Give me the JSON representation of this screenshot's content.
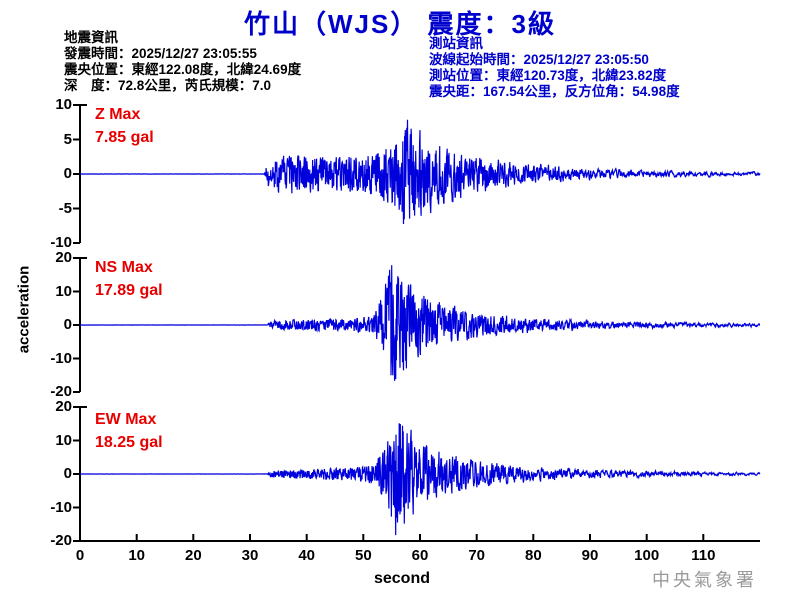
{
  "title": "竹山（WJS） 震度：3級",
  "watermark": "中央氣象署",
  "earthquake_info": {
    "heading": "地震資訊",
    "origin_time": "發震時間：2025/12/27 23:05:55",
    "epicenter": "震央位置：東經122.08度，北緯24.69度",
    "depth_magnitude": "深　度：72.8公里，芮氏規模：7.0"
  },
  "station_info": {
    "heading": "測站資訊",
    "trace_start_time": "波線起始時間：2025/12/27 23:05:50",
    "station_location": "測站位置：東經120.73度，北緯23.82度",
    "distance_azimuth": "震央距：167.54公里，反方位角：54.98度"
  },
  "colors": {
    "blue_text": "#0000cc",
    "waveform": "#0000dd",
    "red_label": "#e80000",
    "watermark_gray": "#9a9a9a",
    "black": "#000000"
  },
  "chart_data": {
    "type": "line",
    "xlabel": "second",
    "ylabel": "acceleration",
    "x_range": [
      0,
      120
    ],
    "x_ticks": [
      0,
      10,
      20,
      30,
      40,
      50,
      60,
      70,
      80,
      90,
      100,
      110
    ],
    "p_onset_second": 33.2,
    "s_onset_second": 53.5,
    "panels": [
      {
        "id": "Z",
        "label": "Z Max",
        "max_label": "7.85 gal",
        "max_gal": 7.85,
        "y_range": [
          -10,
          10
        ],
        "y_ticks": [
          10,
          5,
          0,
          -5,
          -10
        ],
        "envelope": [
          [
            0,
            0.02
          ],
          [
            32.5,
            0.02
          ],
          [
            33.2,
            1.8
          ],
          [
            36,
            2.6
          ],
          [
            44,
            2.2
          ],
          [
            50,
            2.4
          ],
          [
            53,
            3.2
          ],
          [
            55,
            4.5
          ],
          [
            56.5,
            7.0
          ],
          [
            58,
            7.85
          ],
          [
            59.5,
            6.0
          ],
          [
            62,
            5.0
          ],
          [
            65,
            3.6
          ],
          [
            70,
            2.6
          ],
          [
            76,
            1.9
          ],
          [
            84,
            1.3
          ],
          [
            92,
            0.9
          ],
          [
            100,
            0.7
          ],
          [
            110,
            0.5
          ],
          [
            120,
            0.45
          ]
        ]
      },
      {
        "id": "NS",
        "label": "NS Max",
        "max_label": "17.89 gal",
        "max_gal": 17.89,
        "y_range": [
          -20,
          20
        ],
        "y_ticks": [
          20,
          10,
          0,
          -10,
          -20
        ],
        "envelope": [
          [
            0,
            0.02
          ],
          [
            33,
            0.02
          ],
          [
            33.8,
            1.0
          ],
          [
            40,
            1.3
          ],
          [
            48,
            1.5
          ],
          [
            51.5,
            2.2
          ],
          [
            53.5,
            8
          ],
          [
            55,
            17.89
          ],
          [
            56.5,
            13
          ],
          [
            58.5,
            10
          ],
          [
            61,
            7.5
          ],
          [
            64,
            5.5
          ],
          [
            68,
            4.2
          ],
          [
            72,
            3.2
          ],
          [
            78,
            2.4
          ],
          [
            85,
            1.8
          ],
          [
            92,
            1.4
          ],
          [
            100,
            1.1
          ],
          [
            110,
            0.9
          ],
          [
            120,
            0.8
          ]
        ]
      },
      {
        "id": "EW",
        "label": "EW Max",
        "max_label": "18.25 gal",
        "max_gal": 18.25,
        "y_range": [
          -20,
          20
        ],
        "y_ticks": [
          20,
          10,
          0,
          -10,
          -20
        ],
        "envelope": [
          [
            0,
            0.02
          ],
          [
            33,
            0.02
          ],
          [
            33.8,
            1.0
          ],
          [
            40,
            1.3
          ],
          [
            48,
            1.6
          ],
          [
            52,
            3.0
          ],
          [
            54.5,
            10
          ],
          [
            56,
            18.25
          ],
          [
            58,
            12
          ],
          [
            60,
            9
          ],
          [
            63,
            6.5
          ],
          [
            66,
            5
          ],
          [
            70,
            3.8
          ],
          [
            75,
            2.9
          ],
          [
            80,
            2.3
          ],
          [
            87,
            1.7
          ],
          [
            94,
            1.3
          ],
          [
            100,
            1.1
          ],
          [
            110,
            0.85
          ],
          [
            120,
            0.7
          ]
        ]
      }
    ]
  }
}
